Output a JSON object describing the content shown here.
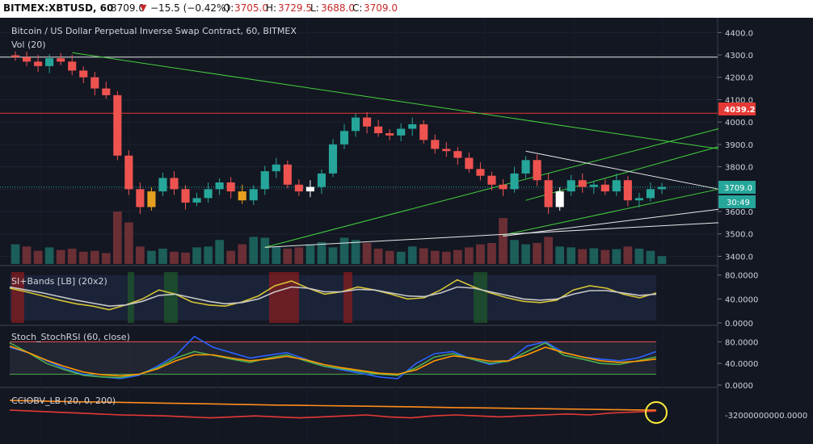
{
  "header": {
    "symbol": "BITMEX:XBTUSD, 60",
    "last": "3709.0",
    "change": "−15.5 (−0.42%)",
    "o_label": "O:",
    "o_value": "3705.0",
    "h_label": "H:",
    "h_value": "3729.5",
    "l_label": "L:",
    "l_value": "3688.0",
    "c_label": "C:",
    "c_value": "3709.0",
    "down_arrow": "▼"
  },
  "colors": {
    "up": "#26a69a",
    "down": "#ef5350",
    "doji": "#e6a020",
    "white_candle": "#ffffff",
    "resistance": "#e53935",
    "trend_green": "#43d13e",
    "trend_white": "#e8e8e8",
    "price_tag": "#26a69a",
    "resistance_tag": "#e53935",
    "background": "#131722",
    "header_text_red": "#c62828"
  },
  "chart_data": [
    {
      "type": "candlestick",
      "title": "Bitcoin / US Dollar Perpetual Inverse Swap Contract, 60, BITMEX",
      "volume_label": "Vol (20)",
      "ylim": [
        3380,
        4430
      ],
      "y_ticks": [
        "4400.0",
        "4300.0",
        "4200.0",
        "4100.0",
        "4000.0",
        "3900.0",
        "3800.0",
        "3700.0",
        "3600.0",
        "3500.0",
        "3400.0"
      ],
      "last_price": 3709.0,
      "last_price_label": "3709.0",
      "countdown": "30:49",
      "resistance": 4039.2,
      "resistance_label": "4039.2",
      "horizontal_level": 4290,
      "close_path": [
        4290,
        4270,
        4250,
        4285,
        4270,
        4230,
        4200,
        4150,
        4120,
        3850,
        3700,
        3620,
        3690,
        3750,
        3700,
        3640,
        3660,
        3700,
        3730,
        3690,
        3650,
        3700,
        3780,
        3810,
        3720,
        3690,
        3710,
        3770,
        3900,
        3960,
        4020,
        3980,
        3950,
        3940,
        3970,
        3990,
        3920,
        3880,
        3870,
        3840,
        3790,
        3760,
        3720,
        3700,
        3770,
        3830,
        3740,
        3620,
        3690,
        3740,
        3710,
        3720,
        3690,
        3740,
        3650,
        3660,
        3700,
        3710
      ],
      "volume": [
        45,
        40,
        30,
        38,
        32,
        35,
        28,
        30,
        25,
        120,
        95,
        40,
        30,
        35,
        28,
        26,
        38,
        40,
        55,
        30,
        45,
        62,
        60,
        40,
        35,
        38,
        45,
        50,
        38,
        60,
        55,
        48,
        35,
        30,
        28,
        40,
        36,
        30,
        28,
        32,
        38,
        45,
        48,
        105,
        55,
        45,
        48,
        62,
        40,
        38,
        34,
        36,
        32,
        34,
        40,
        35,
        30,
        18
      ]
    },
    {
      "type": "line",
      "title": "SI+Bands [LB] (20x2)",
      "ylim": [
        0,
        85
      ],
      "y_ticks": [
        "80.0000",
        "40.0000",
        "0.0000"
      ],
      "series": [
        {
          "color": "#d4c433",
          "values": [
            58,
            52,
            45,
            38,
            32,
            28,
            22,
            30,
            40,
            55,
            48,
            35,
            30,
            28,
            35,
            45,
            62,
            70,
            58,
            48,
            52,
            60,
            55,
            48,
            40,
            42,
            55,
            72,
            60,
            50,
            42,
            36,
            34,
            38,
            55,
            62,
            58,
            48,
            42,
            50
          ]
        },
        {
          "color": "#c8c8c8",
          "values": [
            60,
            55,
            50,
            44,
            38,
            33,
            28,
            30,
            36,
            46,
            48,
            42,
            36,
            32,
            34,
            40,
            52,
            60,
            58,
            52,
            52,
            56,
            55,
            50,
            45,
            44,
            50,
            60,
            58,
            52,
            46,
            40,
            38,
            40,
            48,
            54,
            54,
            50,
            46,
            48
          ]
        }
      ]
    },
    {
      "type": "line",
      "title": "Stoch_StochRSI (60, close)",
      "ylim": [
        0,
        100
      ],
      "y_ticks": [
        "80.0000",
        "40.0000",
        "0.0000"
      ],
      "series": [
        {
          "color": "#2962ff",
          "values": [
            70,
            60,
            45,
            30,
            20,
            15,
            12,
            18,
            35,
            55,
            90,
            70,
            60,
            50,
            55,
            60,
            48,
            35,
            28,
            22,
            15,
            12,
            40,
            58,
            62,
            48,
            38,
            45,
            72,
            80,
            60,
            52,
            48,
            45,
            50,
            62
          ]
        },
        {
          "color": "#4caf50",
          "values": [
            78,
            60,
            40,
            28,
            18,
            15,
            14,
            20,
            32,
            50,
            62,
            55,
            48,
            42,
            50,
            56,
            45,
            35,
            30,
            25,
            20,
            18,
            32,
            52,
            58,
            48,
            40,
            44,
            62,
            78,
            55,
            48,
            40,
            38,
            45,
            52
          ]
        },
        {
          "color": "#ff9800",
          "values": [
            72,
            60,
            46,
            34,
            24,
            19,
            17,
            20,
            30,
            45,
            56,
            56,
            50,
            45,
            48,
            53,
            47,
            38,
            32,
            27,
            22,
            20,
            28,
            45,
            54,
            50,
            44,
            45,
            56,
            70,
            60,
            52,
            45,
            42,
            44,
            48
          ]
        }
      ]
    },
    {
      "type": "line",
      "title": "CCIOBV_LB (20, 0, 200)",
      "y_ticks": [
        "-32000000000.0000"
      ],
      "series": [
        {
          "color": "#ff8c1a",
          "values": [
            10,
            10.5,
            11,
            11.4,
            11.7,
            12,
            12.4,
            12.8,
            13.2,
            13.6,
            14,
            14.4,
            14.8,
            15.1,
            15.4,
            15.7,
            16,
            16.3,
            16.6,
            17,
            17.4,
            17.7,
            18,
            18.3,
            18.6,
            18.9,
            19.2,
            19.5,
            19.8,
            20
          ]
        },
        {
          "color": "#e53935",
          "values": [
            20,
            21,
            22,
            23,
            24,
            25,
            25.5,
            26,
            27,
            28,
            27,
            26,
            27,
            28,
            27,
            26,
            25,
            27,
            28,
            26,
            25,
            26,
            27,
            26,
            25,
            24,
            25,
            23,
            22,
            21
          ]
        }
      ]
    }
  ]
}
